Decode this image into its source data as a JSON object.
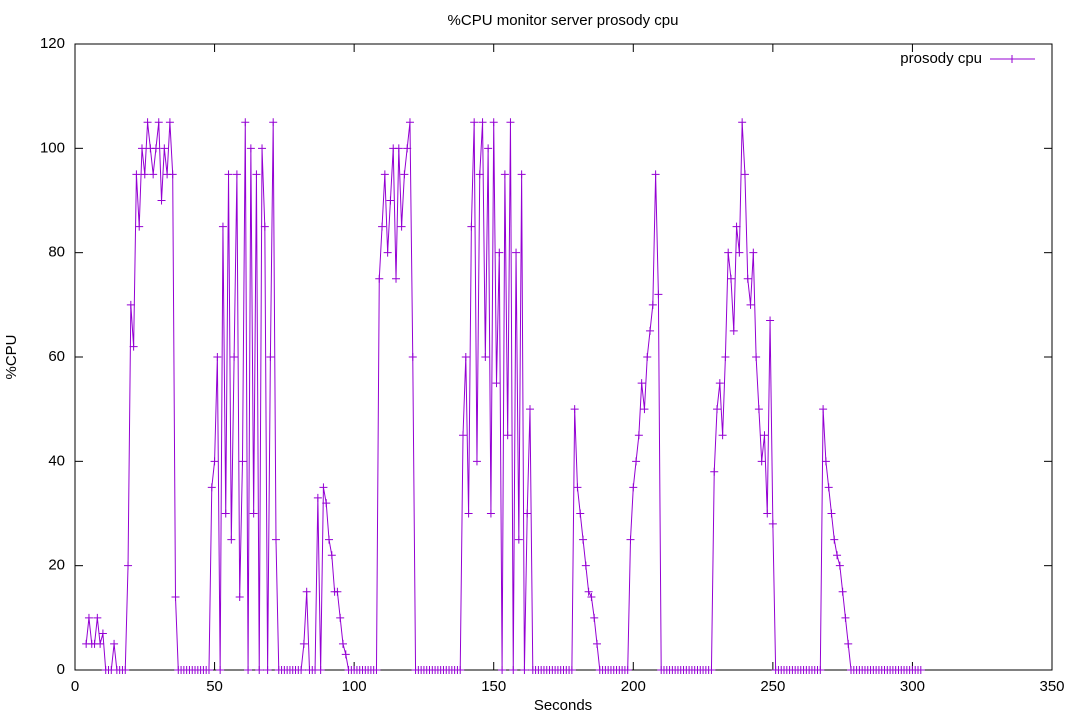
{
  "chart_data": {
    "type": "line",
    "title": "%CPU monitor server prosody cpu",
    "x_label": "Seconds",
    "y_label": "%CPU",
    "xlim": [
      0,
      350
    ],
    "xticks": [
      0,
      50,
      100,
      150,
      200,
      250,
      300,
      350
    ],
    "ylim": [
      0,
      120
    ],
    "yticks": [
      0,
      20,
      40,
      60,
      80,
      100,
      120
    ],
    "grid": false,
    "legend": "top-right",
    "x": [
      4,
      5,
      6,
      7,
      8,
      9,
      10,
      11,
      12,
      13,
      14,
      15,
      16,
      17,
      18,
      19,
      20,
      21,
      22,
      23,
      24,
      25,
      26,
      27,
      28,
      29,
      30,
      31,
      32,
      33,
      34,
      35,
      36,
      37,
      38,
      39,
      40,
      41,
      42,
      43,
      44,
      45,
      46,
      47,
      48,
      49,
      50,
      51,
      52,
      53,
      54,
      55,
      56,
      57,
      58,
      59,
      60,
      61,
      62,
      63,
      64,
      65,
      66,
      67,
      68,
      69,
      70,
      71,
      72,
      73,
      74,
      75,
      76,
      77,
      78,
      79,
      80,
      81,
      82,
      83,
      84,
      85,
      86,
      87,
      88,
      89,
      90,
      91,
      92,
      93,
      94,
      95,
      96,
      97,
      98,
      99,
      100,
      101,
      102,
      103,
      104,
      105,
      106,
      107,
      108,
      109,
      110,
      111,
      112,
      113,
      114,
      115,
      116,
      117,
      118,
      119,
      120,
      121,
      122,
      123,
      124,
      125,
      126,
      127,
      128,
      129,
      130,
      131,
      132,
      133,
      134,
      135,
      136,
      137,
      138,
      139,
      140,
      141,
      142,
      143,
      144,
      145,
      146,
      147,
      148,
      149,
      150,
      151,
      152,
      153,
      154,
      155,
      156,
      157,
      158,
      159,
      160,
      161,
      162,
      163,
      164,
      165,
      166,
      167,
      168,
      169,
      170,
      171,
      172,
      173,
      174,
      175,
      176,
      177,
      178,
      179,
      180,
      181,
      182,
      183,
      184,
      185,
      186,
      187,
      188,
      189,
      190,
      191,
      192,
      193,
      194,
      195,
      196,
      197,
      198,
      199,
      200,
      201,
      202,
      203,
      204,
      205,
      206,
      207,
      208,
      209,
      210,
      211,
      212,
      213,
      214,
      215,
      216,
      217,
      218,
      219,
      220,
      221,
      222,
      223,
      224,
      225,
      226,
      227,
      228,
      229,
      230,
      231,
      232,
      233,
      234,
      235,
      236,
      237,
      238,
      239,
      240,
      241,
      242,
      243,
      244,
      245,
      246,
      247,
      248,
      249,
      250,
      251,
      252,
      253,
      254,
      255,
      256,
      257,
      258,
      259,
      260,
      261,
      262,
      263,
      264,
      265,
      266,
      267,
      268,
      269,
      270,
      271,
      272,
      273,
      274,
      275,
      276,
      277,
      278,
      279,
      280,
      281,
      282,
      283,
      284,
      285,
      286,
      287,
      288,
      289,
      290,
      291,
      292,
      293,
      294,
      295,
      296,
      297,
      298,
      299,
      300,
      301,
      302,
      303
    ],
    "series": [
      {
        "name": "prosody cpu",
        "color": "#9400d3",
        "values": [
          5,
          10,
          5,
          5,
          10,
          5,
          7,
          0,
          0,
          0,
          5,
          0,
          0,
          0,
          0,
          20,
          70,
          62,
          95,
          85,
          100,
          95,
          105,
          100,
          95,
          100,
          105,
          90,
          100,
          95,
          105,
          95,
          14,
          0,
          0,
          0,
          0,
          0,
          0,
          0,
          0,
          0,
          0,
          0,
          0,
          35,
          40,
          60,
          0,
          85,
          30,
          95,
          25,
          60,
          95,
          14,
          40,
          105,
          0,
          100,
          30,
          95,
          0,
          100,
          85,
          0,
          60,
          105,
          25,
          0,
          0,
          0,
          0,
          0,
          0,
          0,
          0,
          0,
          5,
          15,
          0,
          0,
          0,
          33,
          0,
          35,
          32,
          25,
          22,
          15,
          15,
          10,
          5,
          3,
          0,
          0,
          0,
          0,
          0,
          0,
          0,
          0,
          0,
          0,
          0,
          75,
          85,
          95,
          80,
          90,
          100,
          75,
          100,
          85,
          95,
          100,
          105,
          60,
          0,
          0,
          0,
          0,
          0,
          0,
          0,
          0,
          0,
          0,
          0,
          0,
          0,
          0,
          0,
          0,
          0,
          45,
          60,
          30,
          85,
          105,
          40,
          95,
          105,
          60,
          100,
          30,
          105,
          55,
          80,
          0,
          95,
          45,
          105,
          0,
          80,
          25,
          95,
          0,
          30,
          50,
          0,
          0,
          0,
          0,
          0,
          0,
          0,
          0,
          0,
          0,
          0,
          0,
          0,
          0,
          0,
          50,
          35,
          30,
          25,
          20,
          15,
          14,
          10,
          5,
          0,
          0,
          0,
          0,
          0,
          0,
          0,
          0,
          0,
          0,
          0,
          25,
          35,
          40,
          45,
          55,
          50,
          60,
          65,
          70,
          95,
          72,
          0,
          0,
          0,
          0,
          0,
          0,
          0,
          0,
          0,
          0,
          0,
          0,
          0,
          0,
          0,
          0,
          0,
          0,
          0,
          38,
          50,
          55,
          45,
          60,
          80,
          75,
          65,
          85,
          80,
          105,
          95,
          75,
          70,
          80,
          60,
          50,
          40,
          45,
          30,
          67,
          28,
          0,
          0,
          0,
          0,
          0,
          0,
          0,
          0,
          0,
          0,
          0,
          0,
          0,
          0,
          0,
          0,
          0,
          50,
          40,
          35,
          30,
          25,
          22,
          20,
          15,
          10,
          5,
          0,
          0,
          0,
          0,
          0,
          0,
          0,
          0,
          0,
          0,
          0,
          0,
          0,
          0,
          0,
          0,
          0,
          0,
          0,
          0,
          0,
          0,
          0,
          0,
          0,
          0
        ]
      }
    ]
  }
}
